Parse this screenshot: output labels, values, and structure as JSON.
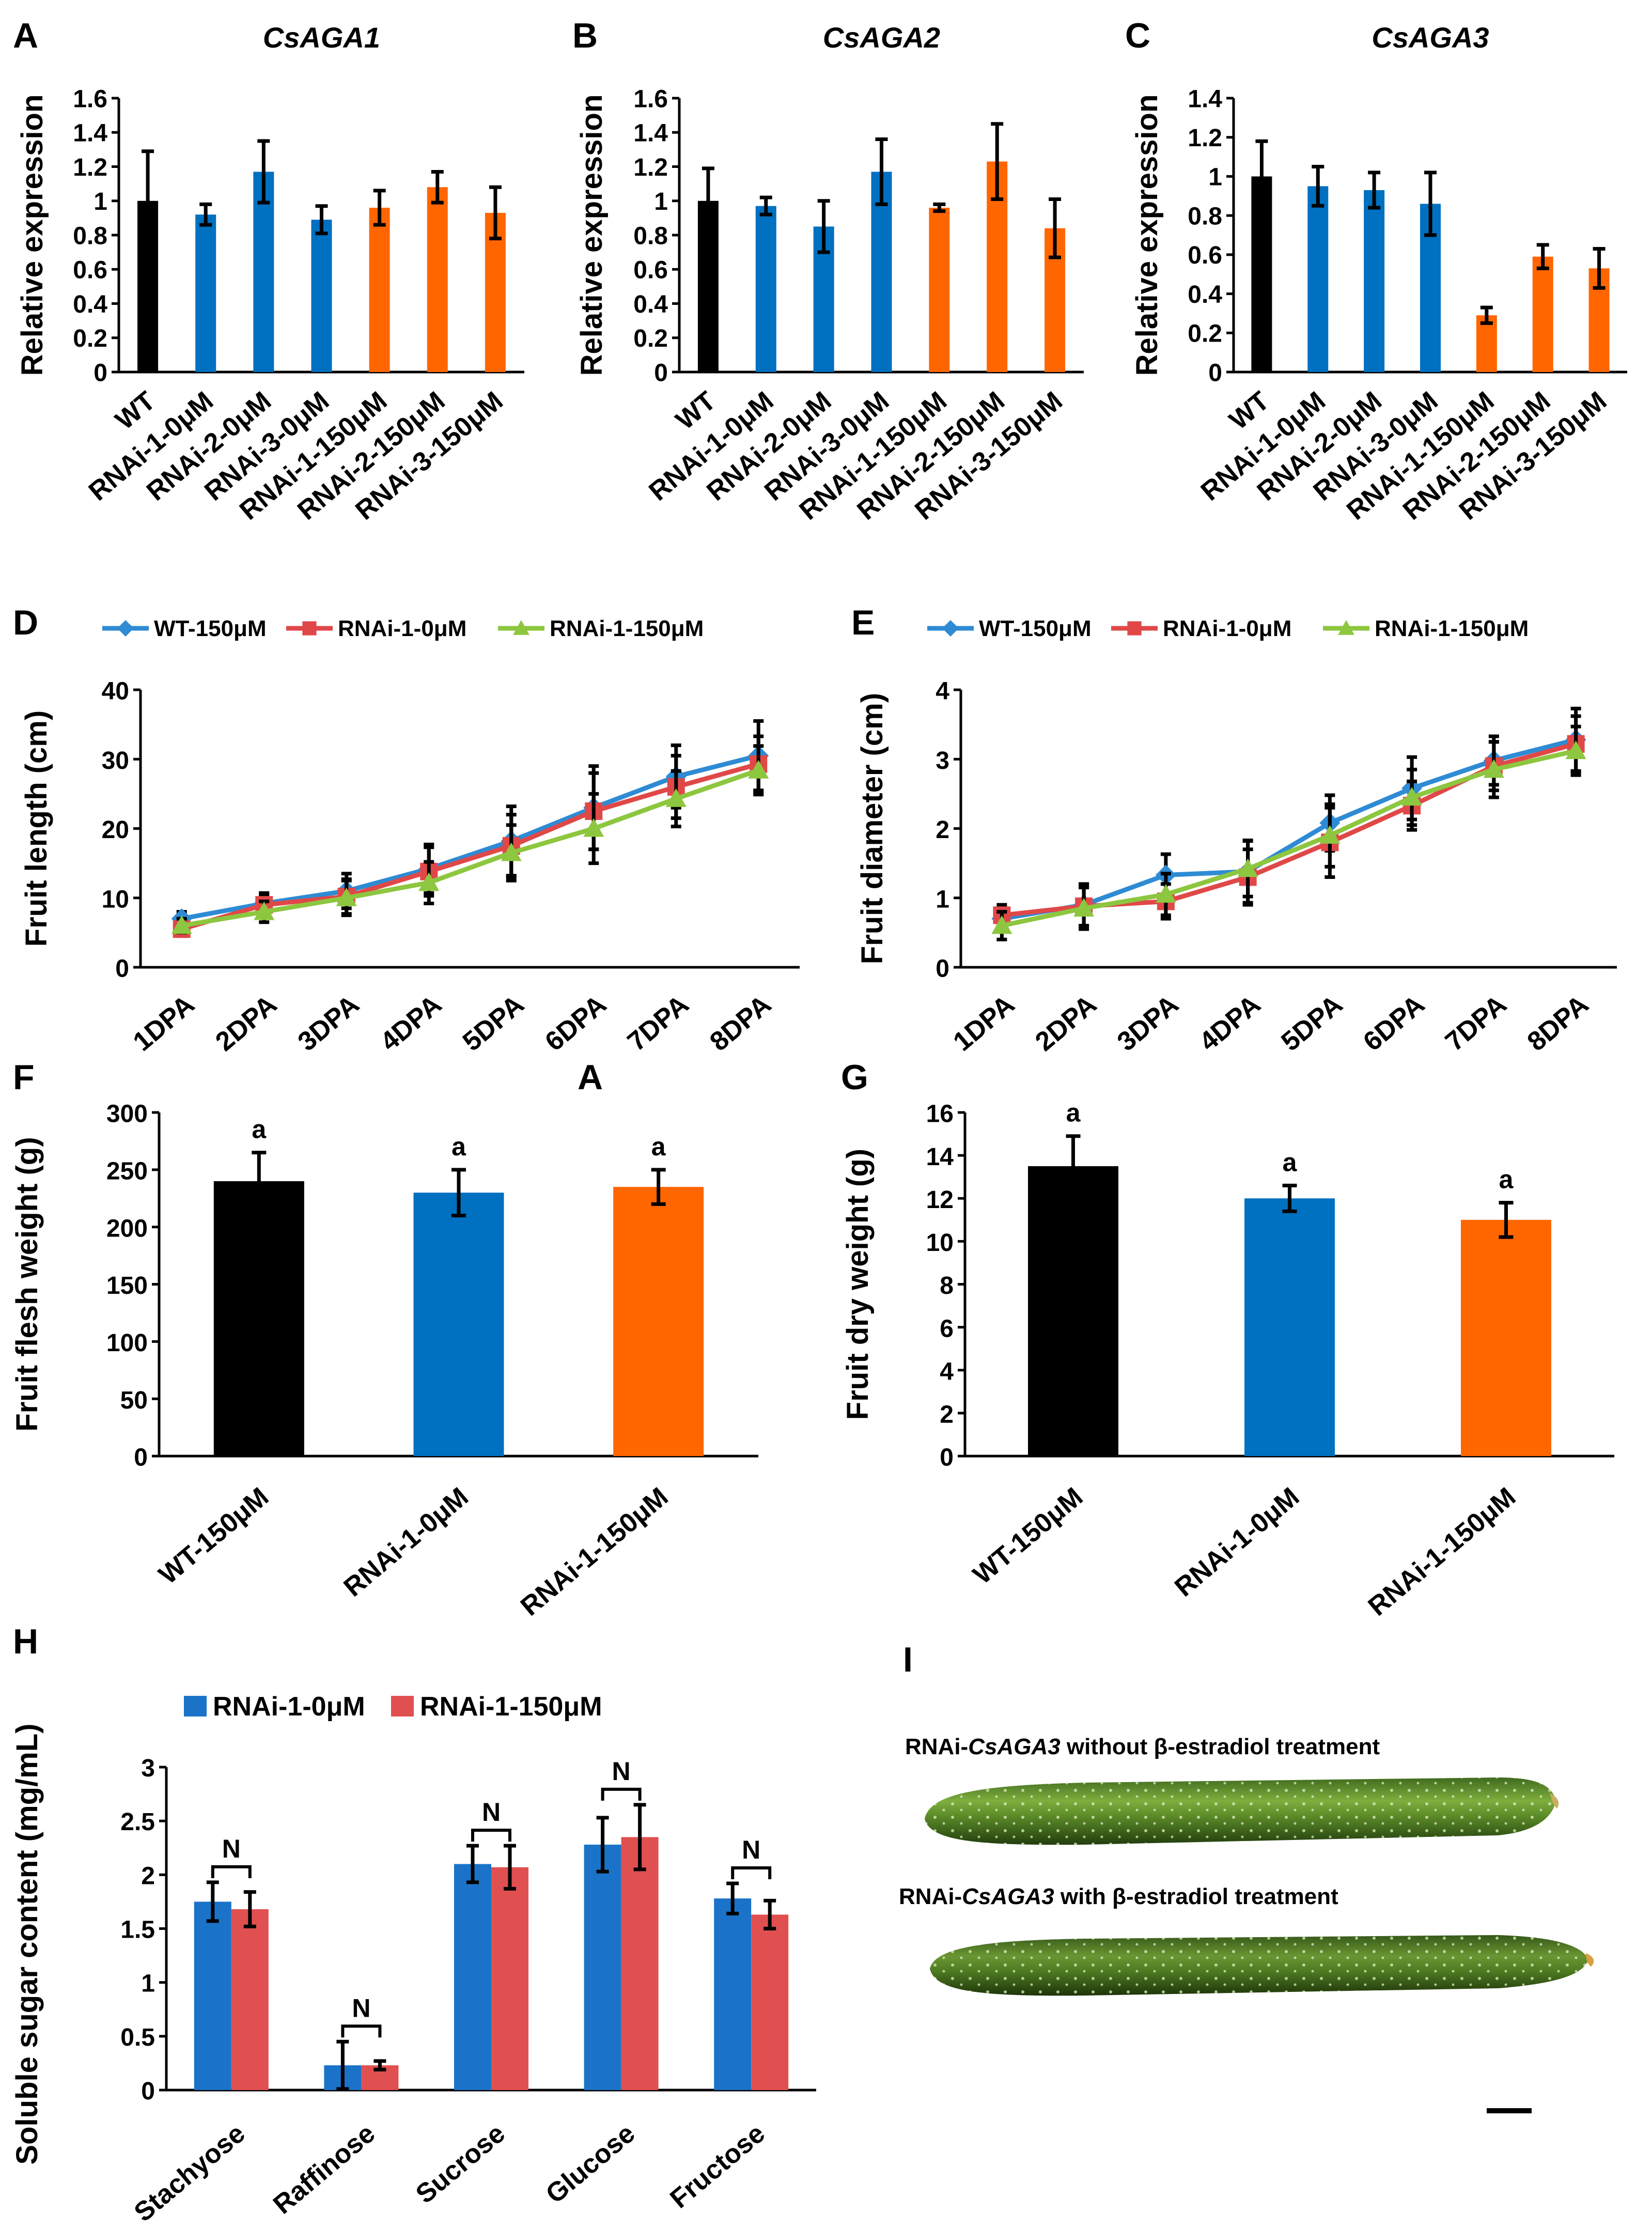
{
  "colors": {
    "wt": "#000000",
    "rnai0": "#0070C0",
    "rnai150": "#FF6600",
    "lineWT": "#2E8BD4",
    "lineR0": "#E04848",
    "lineR150": "#8DC63F",
    "hBlue": "#1A73C8",
    "hRed": "#E05050"
  },
  "panels": [
    {
      "id": "A",
      "label": "A"
    },
    {
      "id": "B",
      "label": "B"
    },
    {
      "id": "C",
      "label": "C"
    },
    {
      "id": "D",
      "label": "D"
    },
    {
      "id": "E",
      "label": "E"
    },
    {
      "id": "F",
      "label": "F"
    },
    {
      "id": "G",
      "label": "G"
    },
    {
      "id": "H",
      "label": "H"
    },
    {
      "id": "I",
      "label": "I"
    }
  ],
  "stray_label": "A",
  "chart_data": [
    {
      "panel": "A",
      "type": "bar",
      "title": "CsAGA1",
      "ylabel": "Relative expression",
      "xlabel": "",
      "ylim": [
        0,
        1.6
      ],
      "yticks": [
        "0",
        "0.2",
        "0.4",
        "0.6",
        "0.8",
        "1",
        "1.2",
        "1.4",
        "1.6"
      ],
      "categories": [
        "WT",
        "RNAi-1-0μM",
        "RNAi-2-0μM",
        "RNAi-3-0μM",
        "RNAi-1-150μM",
        "RNAi-2-150μM",
        "RNAi-3-150μM"
      ],
      "values": [
        1.0,
        0.92,
        1.17,
        0.89,
        0.96,
        1.08,
        0.93
      ],
      "errors": [
        0.29,
        0.06,
        0.18,
        0.08,
        0.1,
        0.09,
        0.15
      ],
      "bar_colors": [
        "wt",
        "rnai0",
        "rnai0",
        "rnai0",
        "rnai150",
        "rnai150",
        "rnai150"
      ]
    },
    {
      "panel": "B",
      "type": "bar",
      "title": "CsAGA2",
      "ylabel": "Relative expression",
      "xlabel": "",
      "ylim": [
        0,
        1.6
      ],
      "yticks": [
        "0",
        "0.2",
        "0.4",
        "0.6",
        "0.8",
        "1",
        "1.2",
        "1.4",
        "1.6"
      ],
      "categories": [
        "WT",
        "RNAi-1-0μM",
        "RNAi-2-0μM",
        "RNAi-3-0μM",
        "RNAi-1-150μM",
        "RNAi-2-150μM",
        "RNAi-3-150μM"
      ],
      "values": [
        1.0,
        0.97,
        0.85,
        1.17,
        0.96,
        1.23,
        0.84
      ],
      "errors": [
        0.19,
        0.05,
        0.15,
        0.19,
        0.02,
        0.22,
        0.17
      ],
      "bar_colors": [
        "wt",
        "rnai0",
        "rnai0",
        "rnai0",
        "rnai150",
        "rnai150",
        "rnai150"
      ]
    },
    {
      "panel": "C",
      "type": "bar",
      "title": "CsAGA3",
      "ylabel": "Relative expression",
      "xlabel": "",
      "ylim": [
        0,
        1.4
      ],
      "yticks": [
        "0",
        "0.2",
        "0.4",
        "0.6",
        "0.8",
        "1",
        "1.2",
        "1.4"
      ],
      "categories": [
        "WT",
        "RNAi-1-0μM",
        "RNAi-2-0μM",
        "RNAi-3-0μM",
        "RNAi-1-150μM",
        "RNAi-2-150μM",
        "RNAi-3-150μM"
      ],
      "values": [
        1.0,
        0.95,
        0.93,
        0.86,
        0.29,
        0.59,
        0.53
      ],
      "errors": [
        0.18,
        0.1,
        0.09,
        0.16,
        0.04,
        0.06,
        0.1
      ],
      "bar_colors": [
        "wt",
        "rnai0",
        "rnai0",
        "rnai0",
        "rnai150",
        "rnai150",
        "rnai150"
      ]
    },
    {
      "panel": "D",
      "type": "line",
      "ylabel": "Fruit length (cm)",
      "xlabel": "",
      "ylim": [
        0,
        40
      ],
      "yticks": [
        "0",
        "10",
        "20",
        "30",
        "40"
      ],
      "x": [
        "1DPA",
        "2DPA",
        "3DPA",
        "4DPA",
        "5DPA",
        "6DPA",
        "7DPA",
        "8DPA"
      ],
      "series": [
        {
          "name": "WT-150μM",
          "color": "lineWT",
          "marker": "diamond",
          "values": [
            7,
            9.2,
            11,
            14.2,
            18.2,
            23,
            27.5,
            30.5
          ],
          "errors": [
            1,
            1.5,
            2.5,
            3.5,
            5,
            6,
            4.5,
            5
          ]
        },
        {
          "name": "RNAi-1-0μM",
          "color": "lineR0",
          "marker": "square",
          "values": [
            5.5,
            9,
            10.2,
            13.8,
            17.5,
            22.5,
            26,
            29.3
          ],
          "errors": [
            1,
            1.5,
            2.5,
            3.5,
            4.5,
            5.5,
            4.5,
            4
          ]
        },
        {
          "name": "RNAi-1-150μM",
          "color": "lineR150",
          "marker": "triangle",
          "values": [
            6,
            8,
            10,
            12.2,
            16.5,
            20,
            24.3,
            28.4
          ],
          "errors": [
            1,
            1.5,
            2.5,
            3,
            4,
            5,
            4,
            3.5
          ]
        }
      ]
    },
    {
      "panel": "E",
      "type": "line",
      "ylabel": "Fruit diameter (cm)",
      "xlabel": "",
      "ylim": [
        0,
        4
      ],
      "yticks": [
        "0",
        "1",
        "2",
        "3",
        "4"
      ],
      "x": [
        "1DPA",
        "2DPA",
        "3DPA",
        "4DPA",
        "5DPA",
        "6DPA",
        "7DPA",
        "8DPA"
      ],
      "series": [
        {
          "name": "WT-150μM",
          "color": "lineWT",
          "marker": "diamond",
          "values": [
            0.7,
            0.9,
            1.33,
            1.38,
            2.08,
            2.58,
            2.98,
            3.28
          ],
          "errors": [
            0.15,
            0.3,
            0.3,
            0.45,
            0.4,
            0.45,
            0.35,
            0.45
          ]
        },
        {
          "name": "RNAi-1-0μM",
          "color": "lineR0",
          "marker": "square",
          "values": [
            0.75,
            0.88,
            0.95,
            1.3,
            1.8,
            2.33,
            2.9,
            3.22
          ],
          "errors": [
            0.15,
            0.3,
            0.25,
            0.4,
            0.5,
            0.35,
            0.35,
            0.4
          ]
        },
        {
          "name": "RNAi-1-150μM",
          "color": "lineR150",
          "marker": "triangle",
          "values": [
            0.6,
            0.85,
            1.05,
            1.42,
            1.9,
            2.45,
            2.85,
            3.12
          ],
          "errors": [
            0.2,
            0.3,
            0.3,
            0.4,
            0.45,
            0.4,
            0.4,
            0.35
          ]
        }
      ]
    },
    {
      "panel": "F",
      "type": "bar",
      "ylabel": "Fruit flesh weight (g)",
      "xlabel": "",
      "ylim": [
        0,
        300
      ],
      "yticks": [
        "0",
        "50",
        "100",
        "150",
        "200",
        "250",
        "300"
      ],
      "categories": [
        "WT-150μM",
        "RNAi-1-0μM",
        "RNAi-1-150μM"
      ],
      "values": [
        240,
        230,
        235
      ],
      "errors": [
        25,
        20,
        15
      ],
      "letters": [
        "a",
        "a",
        "a"
      ],
      "bar_colors": [
        "wt",
        "rnai0",
        "rnai150"
      ]
    },
    {
      "panel": "G",
      "type": "bar",
      "ylabel": "Fruit dry weight (g)",
      "xlabel": "",
      "ylim": [
        0,
        16
      ],
      "yticks": [
        "0",
        "2",
        "4",
        "6",
        "8",
        "10",
        "12",
        "14",
        "16"
      ],
      "categories": [
        "WT-150μM",
        "RNAi-1-0μM",
        "RNAi-1-150μM"
      ],
      "values": [
        13.5,
        12,
        11
      ],
      "errors": [
        1.4,
        0.6,
        0.8
      ],
      "letters": [
        "a",
        "a",
        "a"
      ],
      "bar_colors": [
        "wt",
        "rnai0",
        "rnai150"
      ]
    },
    {
      "panel": "H",
      "type": "bar",
      "ylabel": "Soluble sugar content (mg/mL)",
      "xlabel": "",
      "ylim": [
        0,
        3
      ],
      "yticks": [
        "0",
        "0.5",
        "1",
        "1.5",
        "2",
        "2.5",
        "3"
      ],
      "categories": [
        "Stachyose",
        "Raffinose",
        "Sucrose",
        "Glucose",
        "Fructose"
      ],
      "series": [
        {
          "name": "RNAi-1-0μM",
          "color": "hBlue",
          "values": [
            1.75,
            0.23,
            2.1,
            2.28,
            1.78
          ],
          "errors": [
            0.18,
            0.22,
            0.17,
            0.25,
            0.14
          ]
        },
        {
          "name": "RNAi-1-150μM",
          "color": "hRed",
          "values": [
            1.68,
            0.23,
            2.07,
            2.35,
            1.63
          ],
          "errors": [
            0.16,
            0.04,
            0.2,
            0.3,
            0.13
          ]
        }
      ],
      "significance": [
        "N",
        "N",
        "N",
        "N",
        "N"
      ]
    }
  ],
  "photo": {
    "caption_top_prefix": "RNAi-",
    "caption_top_gene": "CsAGA3",
    "caption_top_suffix": " without β-estradiol treatment",
    "caption_bottom_prefix": "RNAi-",
    "caption_bottom_gene": "CsAGA3",
    "caption_bottom_suffix": " with β-estradiol treatment"
  }
}
